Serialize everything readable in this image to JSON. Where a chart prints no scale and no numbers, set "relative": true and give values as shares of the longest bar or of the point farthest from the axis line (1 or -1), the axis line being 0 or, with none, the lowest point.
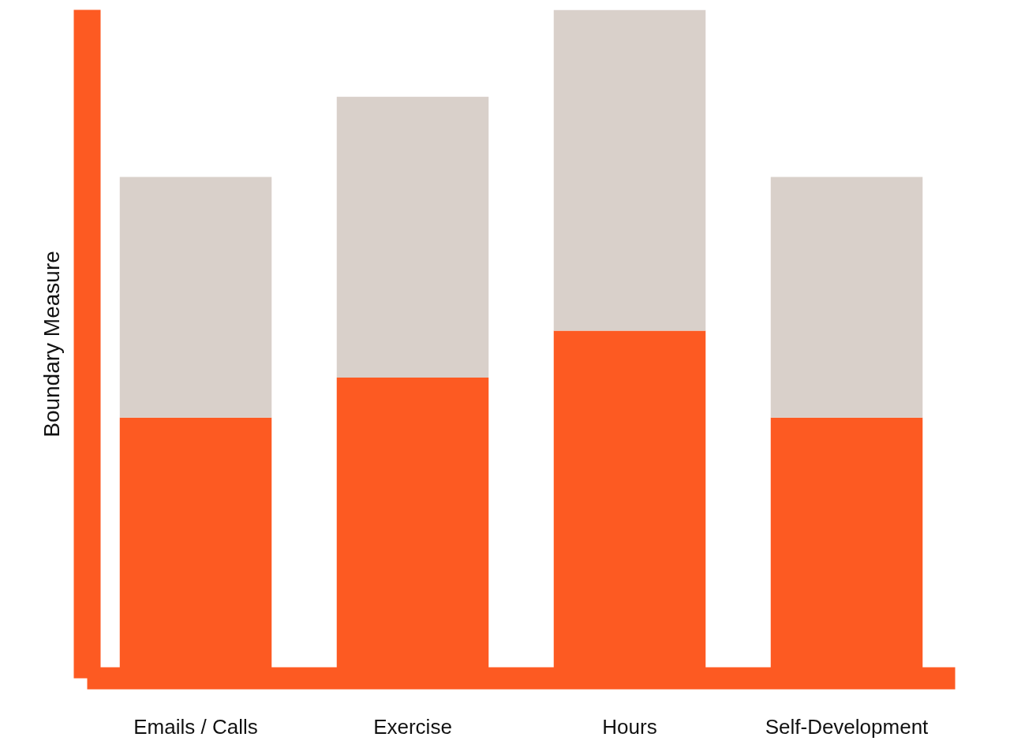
{
  "chart_data": {
    "type": "bar",
    "stacked": true,
    "relative": true,
    "ylabel": "Boundary Measure",
    "categories": [
      "Emails / Calls",
      "Exercise",
      "Hours",
      "Self-Development"
    ],
    "series": [
      {
        "color": "#fd5a22",
        "values": [
          0.39,
          0.45,
          0.52,
          0.39
        ]
      },
      {
        "color": "#d9d0ca",
        "values": [
          0.36,
          0.42,
          0.48,
          0.36
        ]
      }
    ],
    "grid": false
  }
}
